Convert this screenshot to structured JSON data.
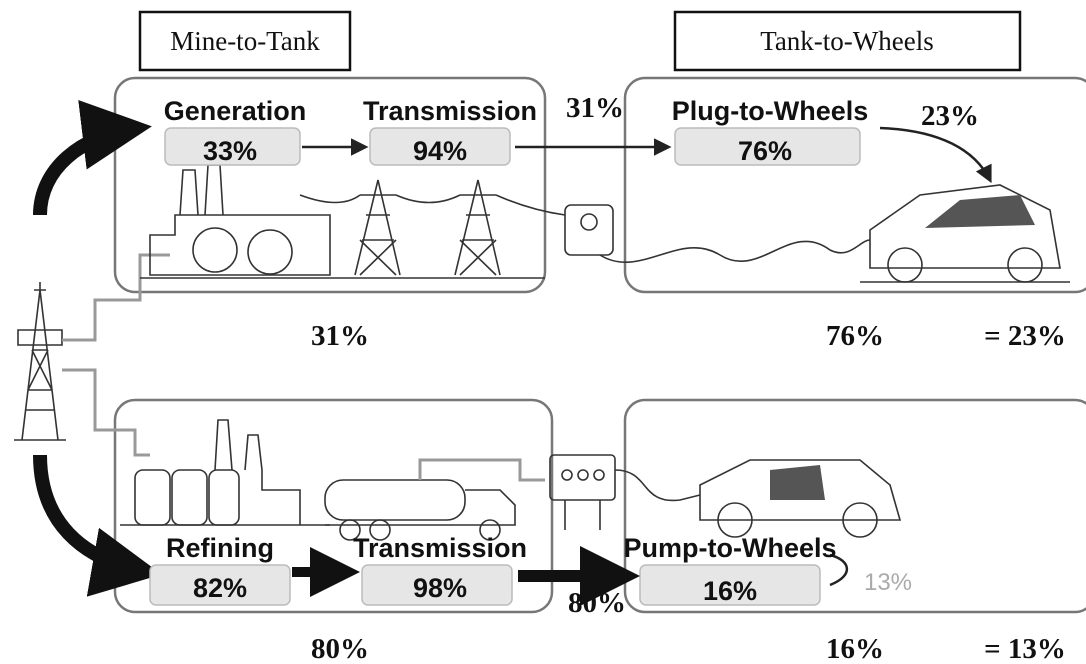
{
  "headers": [
    "Mine-to-Tank",
    "Tank-to-Wheels"
  ],
  "electric": {
    "stages": [
      {
        "label": "Generation",
        "efficiency": "33%"
      },
      {
        "label": "Transmission",
        "efficiency": "94%"
      },
      {
        "label": "Plug-to-Wheels",
        "efficiency": "76%"
      }
    ],
    "mine_to_tank": "31%",
    "overall": "23%",
    "summary": [
      "31%",
      "76%",
      "= 23%"
    ]
  },
  "fossil": {
    "stages": [
      {
        "label": "Refining",
        "efficiency": "82%"
      },
      {
        "label": "Transmission",
        "efficiency": "98%"
      },
      {
        "label": "Pump-to-Wheels",
        "efficiency": "16%"
      }
    ],
    "mine_to_tank": "80%",
    "overall": "13%",
    "summary": [
      "80%",
      "16%",
      "= 13%"
    ]
  }
}
